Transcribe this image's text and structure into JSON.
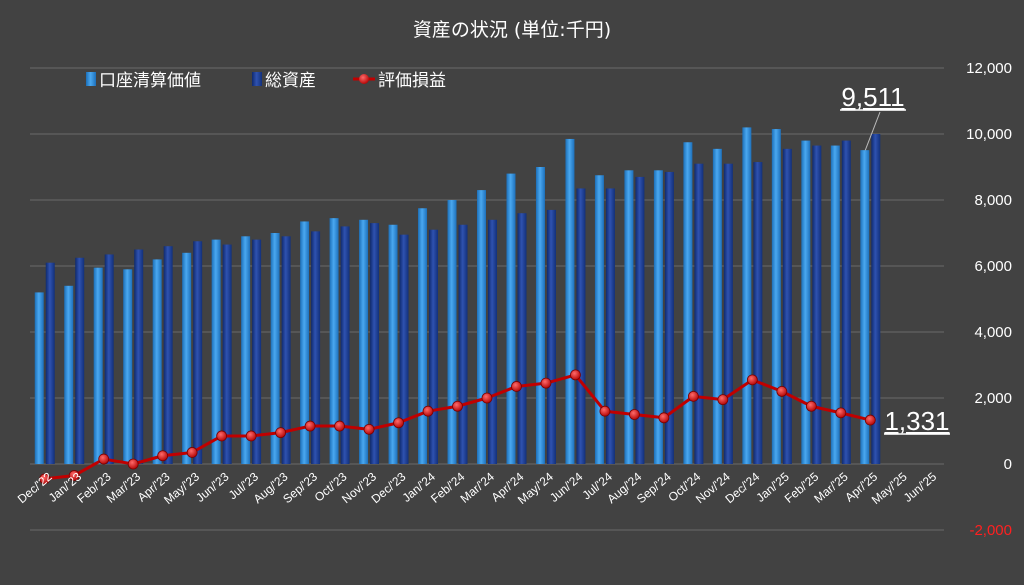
{
  "chart_data": {
    "type": "bar",
    "title": "資産の状況 (単位:千円)",
    "categories": [
      "Dec/'22",
      "Jan/'23",
      "Feb/'23",
      "Mar/'23",
      "Apr/'23",
      "May/'23",
      "Jun/'23",
      "Jul/'23",
      "Aug/'23",
      "Sep/'23",
      "Oct/'23",
      "Nov/'23",
      "Dec/'23",
      "Jan/'24",
      "Feb/'24",
      "Mar/'24",
      "Apr/'24",
      "May/'24",
      "Jun/'24",
      "Jul/'24",
      "Aug/'24",
      "Sep/'24",
      "Oct/'24",
      "Nov/'24",
      "Dec/'24",
      "Jan/'25",
      "Feb/'25",
      "Mar/'25",
      "Apr/'25",
      "May/'25",
      "Jun/'25"
    ],
    "series": [
      {
        "name": "口座清算価値",
        "type": "bar",
        "color": "#2e86d4",
        "values": [
          5200,
          5400,
          5950,
          5900,
          6200,
          6400,
          6800,
          6900,
          7000,
          7350,
          7450,
          7400,
          7250,
          7750,
          8000,
          8300,
          8800,
          9000,
          9850,
          8750,
          8900,
          8900,
          9750,
          9550,
          10200,
          10150,
          9800,
          9650,
          9511,
          null,
          null
        ]
      },
      {
        "name": "総資産",
        "type": "bar",
        "color": "#1a3a8a",
        "values": [
          6100,
          6250,
          6350,
          6500,
          6600,
          6750,
          6650,
          6800,
          6900,
          7050,
          7200,
          7300,
          6950,
          7100,
          7250,
          7400,
          7600,
          7700,
          8350,
          8350,
          8700,
          8850,
          9100,
          9100,
          9150,
          9550,
          9650,
          9800,
          10000,
          null,
          null
        ]
      },
      {
        "name": "評価損益",
        "type": "line",
        "color": "#c00000",
        "values": [
          -450,
          -350,
          150,
          0,
          250,
          350,
          850,
          850,
          950,
          1150,
          1150,
          1050,
          1250,
          1600,
          1750,
          2000,
          2350,
          2450,
          2700,
          1600,
          1500,
          1400,
          2050,
          1950,
          2550,
          2200,
          1750,
          1550,
          1331,
          null,
          null
        ]
      }
    ],
    "yaxis": {
      "min": -2000,
      "max": 12000,
      "ticks": [
        "12,000",
        "10,000",
        "8,000",
        "6,000",
        "4,000",
        "2,000",
        "0",
        "-2,000"
      ],
      "position": "right"
    },
    "grid": true,
    "legend": "top-left",
    "annotations": [
      {
        "text": "9,511",
        "series": "口座清算価値",
        "category": "Apr/'25"
      },
      {
        "text": "1,331",
        "series": "評価損益",
        "category": "Apr/'25"
      }
    ]
  }
}
